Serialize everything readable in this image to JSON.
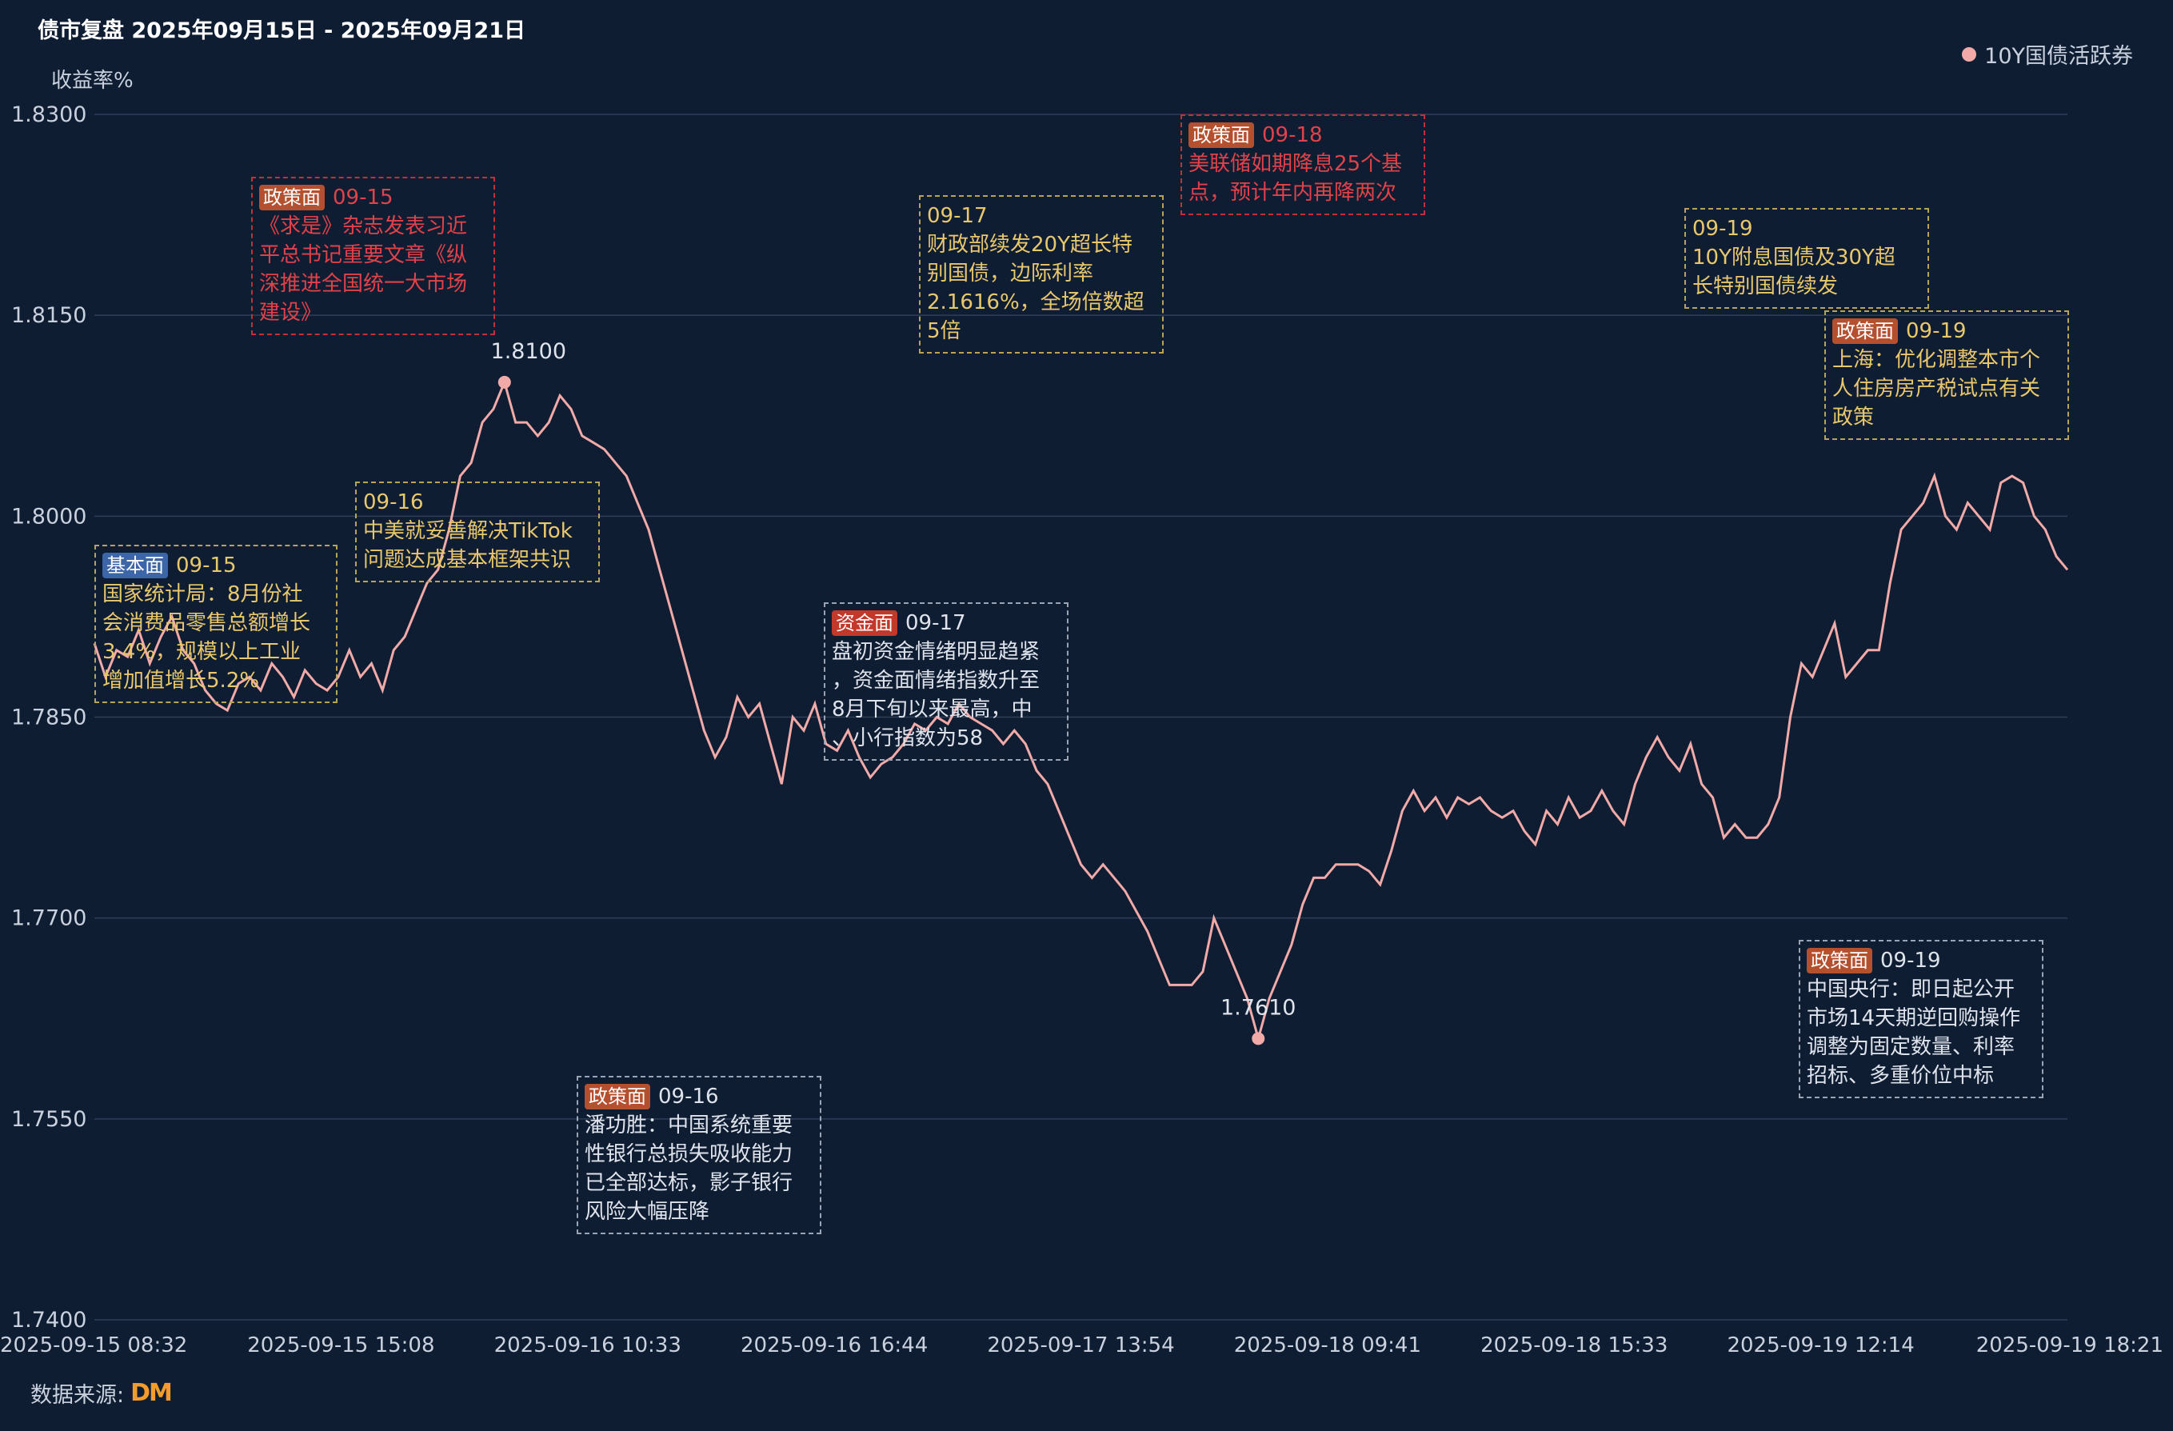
{
  "title": "债市复盘 2025年09月15日 - 2025年09月21日",
  "y_axis_label": "收益率%",
  "legend_label": "10Y国债活跃券",
  "source_label": "数据来源:",
  "logo_text": "DM",
  "colors": {
    "background": "#0f1d33",
    "line": "#f2aaa8",
    "grid": "#2f3f58",
    "policy_tag": "#b5502f",
    "fund_tag": "#c0392b",
    "basic_tag": "#3d66a8"
  },
  "chart_data": {
    "type": "line",
    "title": "债市复盘 2025年09月15日 - 2025年09月21日",
    "ylabel": "收益率%",
    "ylim": [
      1.74,
      1.83
    ],
    "yticks": [
      "1.8300",
      "1.8150",
      "1.8000",
      "1.7850",
      "1.7700",
      "1.7550",
      "1.7400"
    ],
    "xticks": [
      "2025-09-15 08:32",
      "2025-09-15 15:08",
      "2025-09-16 10:33",
      "2025-09-16 16:44",
      "2025-09-17 13:54",
      "2025-09-18 09:41",
      "2025-09-18 15:33",
      "2025-09-19 12:14",
      "2025-09-19 18:21"
    ],
    "grid": true,
    "legend_position": "top-right",
    "series": [
      {
        "name": "10Y国债活跃券",
        "values": [
          1.7905,
          1.788,
          1.79,
          1.7895,
          1.7915,
          1.789,
          1.791,
          1.7925,
          1.79,
          1.789,
          1.787,
          1.786,
          1.7855,
          1.7875,
          1.788,
          1.787,
          1.789,
          1.788,
          1.7865,
          1.7885,
          1.7875,
          1.787,
          1.788,
          1.79,
          1.788,
          1.789,
          1.787,
          1.79,
          1.791,
          1.793,
          1.795,
          1.796,
          1.799,
          1.803,
          1.804,
          1.807,
          1.808,
          1.81,
          1.807,
          1.807,
          1.806,
          1.807,
          1.809,
          1.808,
          1.806,
          1.8055,
          1.805,
          1.804,
          1.803,
          1.801,
          1.799,
          1.796,
          1.793,
          1.79,
          1.787,
          1.784,
          1.782,
          1.7835,
          1.7865,
          1.785,
          1.786,
          1.783,
          1.78,
          1.785,
          1.784,
          1.786,
          1.783,
          1.7825,
          1.784,
          1.782,
          1.7805,
          1.7815,
          1.782,
          1.783,
          1.7845,
          1.784,
          1.785,
          1.7845,
          1.786,
          1.785,
          1.7845,
          1.784,
          1.783,
          1.784,
          1.783,
          1.781,
          1.78,
          1.778,
          1.776,
          1.774,
          1.773,
          1.774,
          1.773,
          1.772,
          1.7705,
          1.769,
          1.767,
          1.765,
          1.765,
          1.765,
          1.766,
          1.77,
          1.768,
          1.766,
          1.764,
          1.761,
          1.764,
          1.766,
          1.768,
          1.771,
          1.773,
          1.773,
          1.774,
          1.774,
          1.774,
          1.7735,
          1.7725,
          1.775,
          1.778,
          1.7795,
          1.778,
          1.779,
          1.7775,
          1.779,
          1.7785,
          1.779,
          1.778,
          1.7775,
          1.778,
          1.7765,
          1.7755,
          1.778,
          1.777,
          1.779,
          1.7775,
          1.778,
          1.7795,
          1.778,
          1.777,
          1.78,
          1.782,
          1.7835,
          1.782,
          1.781,
          1.783,
          1.78,
          1.779,
          1.776,
          1.777,
          1.776,
          1.776,
          1.777,
          1.779,
          1.785,
          1.789,
          1.788,
          1.79,
          1.792,
          1.788,
          1.789,
          1.79,
          1.79,
          1.795,
          1.799,
          1.8,
          1.801,
          1.803,
          1.8,
          1.799,
          1.801,
          1.8,
          1.799,
          1.8025,
          1.803,
          1.8025,
          1.8,
          1.799,
          1.797,
          1.796
        ]
      }
    ],
    "annotations": [
      {
        "date": "09-15",
        "tag": "基本面",
        "text": "国家统计局：8月份社会消费品零售总额增长3.4%，规模以上工业增加值增长5.2%"
      },
      {
        "date": "09-15",
        "tag": "政策面",
        "text": "《求是》杂志发表习近平总书记重要文章《纵深推进全国统一大市场建设》"
      },
      {
        "date": "09-16",
        "tag": "",
        "text": "中美就妥善解决TikTok问题达成基本框架共识"
      },
      {
        "date": "09-16",
        "tag": "政策面",
        "text": "潘功胜：中国系统重要性银行总损失吸收能力已全部达标，影子银行风险大幅压降"
      },
      {
        "date": "09-17",
        "tag": "",
        "text": "财政部续发20Y超长特别国债，边际利率2.1616%，全场倍数超5倍"
      },
      {
        "date": "09-17",
        "tag": "资金面",
        "text": "盘初资金情绪明显趋紧，资金面情绪指数升至8月下旬以来最高，中、小行指数为58"
      },
      {
        "date": "09-18",
        "tag": "政策面",
        "text": "美联储如期降息25个基点，预计年内再降两次"
      },
      {
        "date": "09-19",
        "tag": "",
        "text": "10Y附息国债及30Y超长特别国债续发"
      },
      {
        "date": "09-19",
        "tag": "政策面",
        "text": "上海：优化调整本市个人住房房产税试点有关政策"
      },
      {
        "date": "09-19",
        "tag": "政策面",
        "text": "中国央行：即日起公开市场14天期逆回购操作调整为固定数量、利率招标、多重价位中标"
      }
    ],
    "max_label": "1.8100",
    "min_label": "1.7610"
  },
  "annotations_ui": {
    "a1": {
      "tag": "基本面",
      "date": "09-15",
      "line1": "国家统计局：8月份社",
      "line2": "会消费品零售总额增长",
      "line3": "3.4%，规模以上工业",
      "line4": "增加值增长5.2%"
    },
    "a2": {
      "tag": "政策面",
      "date": "09-15",
      "line1": "《求是》杂志发表习近",
      "line2": "平总书记重要文章《纵",
      "line3": "深推进全国统一大市场",
      "line4": "建设》"
    },
    "a3": {
      "date": "09-16",
      "line1": "中美就妥善解决TikTok",
      "line2": "问题达成基本框架共识"
    },
    "a4": {
      "tag": "政策面",
      "date": "09-16",
      "line1": "潘功胜：中国系统重要",
      "line2": "性银行总损失吸收能力",
      "line3": "已全部达标，影子银行",
      "line4": "风险大幅压降"
    },
    "a5": {
      "date": "09-17",
      "line1": "财政部续发20Y超长特",
      "line2": "别国债，边际利率",
      "line3": "2.1616%，全场倍数超",
      "line4": "5倍"
    },
    "a6": {
      "tag": "资金面",
      "date": "09-17",
      "line1": "盘初资金情绪明显趋紧",
      "line2": "，资金面情绪指数升至",
      "line3": "8月下旬以来最高，中",
      "line4": "、小行指数为58"
    },
    "a7": {
      "tag": "政策面",
      "date": "09-18",
      "line1": "美联储如期降息25个基",
      "line2": "点，预计年内再降两次"
    },
    "a8": {
      "date": "09-19",
      "line1": "10Y附息国债及30Y超",
      "line2": "长特别国债续发"
    },
    "a9": {
      "tag": "政策面",
      "date": "09-19",
      "line1": "上海：优化调整本市个",
      "line2": "人住房房产税试点有关",
      "line3": "政策"
    },
    "a10": {
      "tag": "政策面",
      "date": "09-19",
      "line1": "中国央行：即日起公开",
      "line2": "市场14天期逆回购操作",
      "line3": "调整为固定数量、利率",
      "line4": "招标、多重价位中标"
    }
  }
}
